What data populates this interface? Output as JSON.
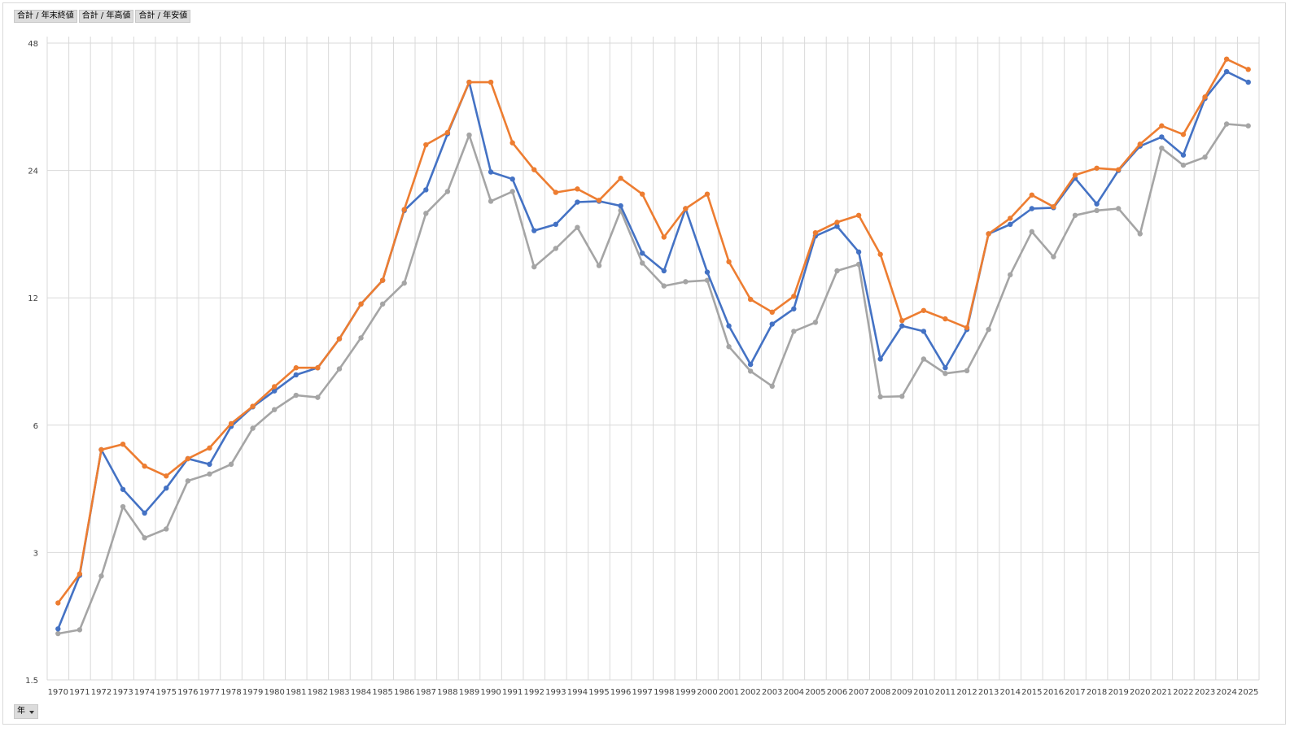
{
  "field_buttons": [
    "合計 / 年末終値",
    "合計 / 年高値",
    "合計 / 年安値"
  ],
  "axis_filter": {
    "label": "年",
    "icon": "dropdown-arrow-icon"
  },
  "chart_data": {
    "type": "line",
    "y_scale": "log",
    "ylim": [
      1.5,
      48
    ],
    "yticks": [
      1.5,
      3,
      6,
      12,
      24,
      48
    ],
    "grid": true,
    "legend": "none",
    "categories": [
      "1970",
      "1971",
      "1972",
      "1973",
      "1974",
      "1975",
      "1976",
      "1977",
      "1978",
      "1979",
      "1980",
      "1981",
      "1982",
      "1983",
      "1984",
      "1985",
      "1986",
      "1987",
      "1988",
      "1989",
      "1990",
      "1991",
      "1992",
      "1993",
      "1994",
      "1995",
      "1996",
      "1997",
      "1998",
      "1999",
      "2000",
      "2001",
      "2002",
      "2003",
      "2004",
      "2005",
      "2006",
      "2007",
      "2008",
      "2009",
      "2010",
      "2011",
      "2012",
      "2013",
      "2014",
      "2015",
      "2016",
      "2017",
      "2018",
      "2019",
      "2020",
      "2021",
      "2022",
      "2023",
      "2024",
      "2025"
    ],
    "series": [
      {
        "name": "合計 / 年末終値",
        "color": "#4472c4",
        "values": [
          1.98,
          2.65,
          5.25,
          4.23,
          3.72,
          4.26,
          5.0,
          4.85,
          5.96,
          6.63,
          7.23,
          7.89,
          8.2,
          9.6,
          11.6,
          13.2,
          19.3,
          21.6,
          29.3,
          38.8,
          23.8,
          22.9,
          17.3,
          17.9,
          20.2,
          20.3,
          19.8,
          15.3,
          13.9,
          19.5,
          13.8,
          10.3,
          8.35,
          10.4,
          11.3,
          16.8,
          17.7,
          15.4,
          8.6,
          10.3,
          10.0,
          8.2,
          10.1,
          17.0,
          17.9,
          19.5,
          19.6,
          23.0,
          20.0,
          24.0,
          27.4,
          28.8,
          26.1,
          35.5,
          41.1,
          38.8
        ]
      },
      {
        "name": "合計 / 年高値",
        "color": "#ed7d31",
        "values": [
          2.28,
          2.67,
          5.25,
          5.41,
          4.8,
          4.55,
          5.0,
          5.3,
          6.05,
          6.65,
          7.4,
          8.2,
          8.2,
          9.6,
          11.6,
          13.2,
          19.4,
          27.6,
          29.5,
          38.8,
          38.8,
          27.9,
          24.1,
          21.3,
          21.7,
          20.4,
          23.0,
          21.1,
          16.7,
          19.5,
          21.1,
          14.6,
          11.9,
          11.1,
          12.1,
          17.1,
          18.1,
          18.8,
          15.2,
          10.6,
          11.2,
          10.7,
          10.2,
          17.0,
          18.5,
          21.0,
          19.7,
          23.4,
          24.3,
          24.1,
          27.7,
          30.6,
          29.2,
          35.8,
          44.0,
          41.6
        ]
      },
      {
        "name": "合計 / 年安値",
        "color": "#a5a5a5",
        "values": [
          1.93,
          1.97,
          2.64,
          3.85,
          3.25,
          3.41,
          4.43,
          4.6,
          4.85,
          5.9,
          6.53,
          7.06,
          6.98,
          8.15,
          9.65,
          11.6,
          13.0,
          19.0,
          21.4,
          29.1,
          20.3,
          21.4,
          14.2,
          15.7,
          17.6,
          14.3,
          19.3,
          14.5,
          12.8,
          13.1,
          13.2,
          9.2,
          8.05,
          7.42,
          10.0,
          10.5,
          13.9,
          14.4,
          7.0,
          7.02,
          8.6,
          7.95,
          8.07,
          10.1,
          13.6,
          17.2,
          15.0,
          18.8,
          19.3,
          19.5,
          17.0,
          27.1,
          24.7,
          25.8,
          30.9,
          30.6
        ]
      }
    ]
  }
}
